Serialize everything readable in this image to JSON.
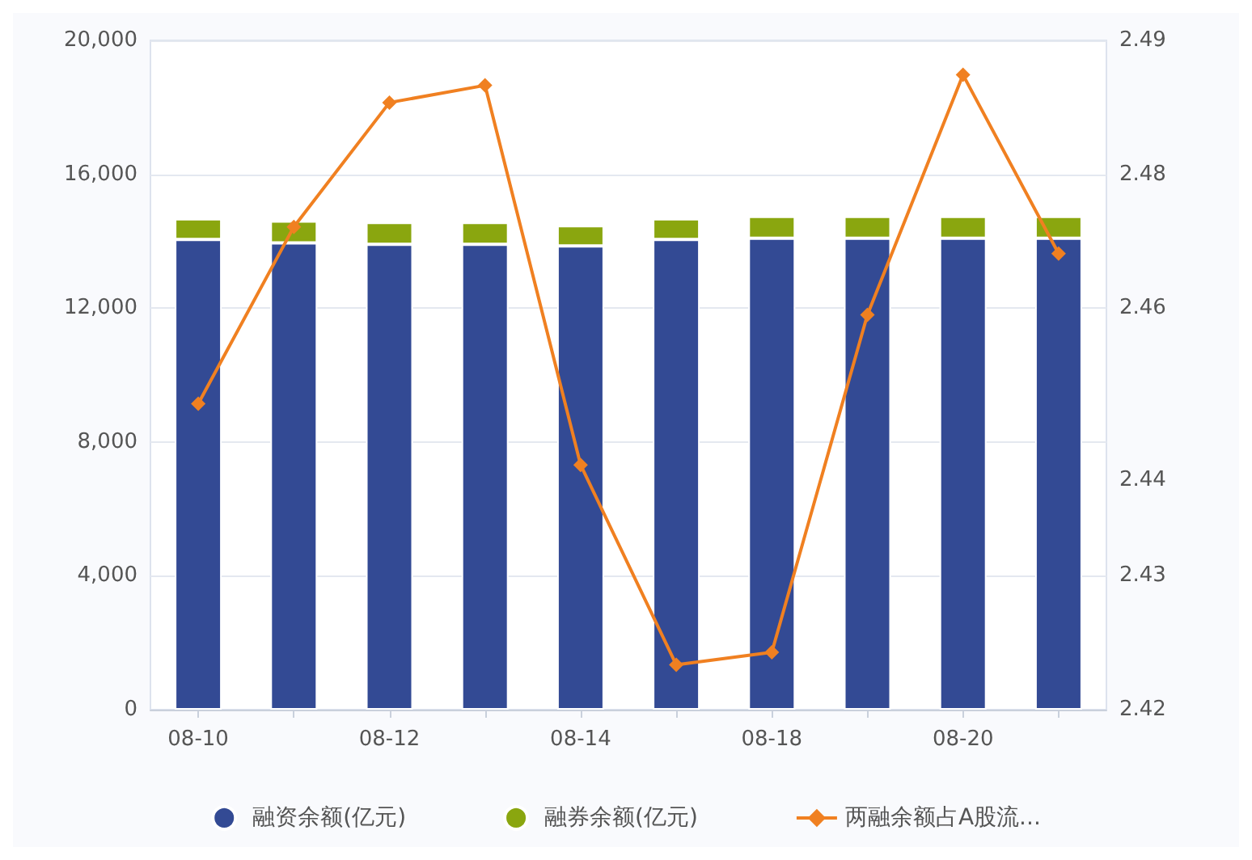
{
  "chart_data": {
    "type": "bar",
    "stacked": true,
    "categories": [
      "08-10",
      null,
      "08-12",
      null,
      "08-14",
      null,
      "08-18",
      null,
      "08-20",
      null
    ],
    "series": [
      {
        "name": "融资余额(亿元)",
        "color": "#334a94",
        "values": [
          14050,
          13950,
          13910,
          13910,
          13860,
          14050,
          14090,
          14090,
          14090,
          14090
        ]
      },
      {
        "name": "融券余额(亿元)",
        "color": "#8aa60f",
        "values": [
          620,
          650,
          650,
          650,
          600,
          620,
          650,
          650,
          650,
          650
        ]
      },
      {
        "name": "两融余额占A股流...",
        "type": "line",
        "axis": "y2",
        "color": "#f08021",
        "marker": "diamond",
        "values": [
          2.452,
          2.4705,
          2.4835,
          2.4853,
          2.4456,
          2.4247,
          2.426,
          2.4613,
          2.4864,
          2.4677
        ]
      }
    ],
    "ylim": [
      0,
      20000
    ],
    "yticks": [
      {
        "value": 0,
        "label": "0"
      },
      {
        "value": 4000,
        "label": "4,000"
      },
      {
        "value": 8000,
        "label": "8,000"
      },
      {
        "value": 12000,
        "label": "12,000"
      },
      {
        "value": 16000,
        "label": "16,000"
      },
      {
        "value": 20000,
        "label": "20,000"
      }
    ],
    "y2lim": [
      2.42,
      2.49
    ],
    "y2ticks": [
      2.42,
      {
        "value": 2.434,
        "label": "2.43"
      },
      {
        "value": 2.444,
        "label": "2.44"
      },
      {
        "value": 2.462,
        "label": "2.46"
      },
      {
        "value": 2.476,
        "label": "2.48"
      },
      2.49
    ],
    "grid": "y",
    "legend": "bottom"
  }
}
